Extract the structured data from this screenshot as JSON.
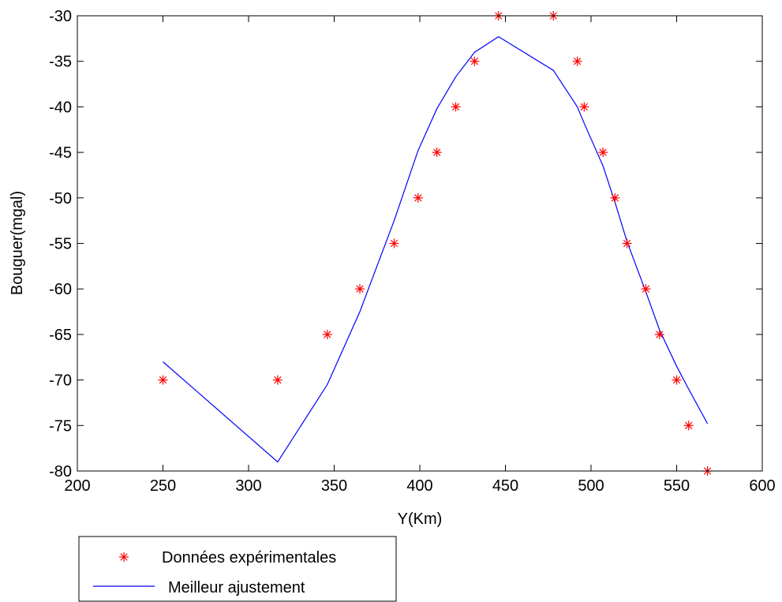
{
  "chart_data": {
    "type": "scatter",
    "title": "",
    "xlabel": "Y(Km)",
    "ylabel": "Bouguer(mgal)",
    "xlim": [
      200,
      600
    ],
    "ylim": [
      -80,
      -30
    ],
    "xticks": [
      200,
      250,
      300,
      350,
      400,
      450,
      500,
      550,
      600
    ],
    "yticks": [
      -30,
      -35,
      -40,
      -45,
      -50,
      -55,
      -60,
      -65,
      -70,
      -75,
      -80
    ],
    "grid": false,
    "legend_position": "bottom-left, outside plot",
    "series": [
      {
        "name": "Données expérimentales",
        "type": "scatter",
        "marker": "asterisk",
        "color": "#ff0000",
        "x": [
          250,
          317,
          346,
          365,
          385,
          399,
          410,
          421,
          432,
          446,
          478,
          492,
          496,
          507,
          514,
          521,
          532,
          540,
          550,
          557,
          568
        ],
        "y": [
          -70,
          -70,
          -65,
          -60,
          -55,
          -50,
          -45,
          -40,
          -35,
          -30,
          -30,
          -35,
          -40,
          -45,
          -50,
          -55,
          -60,
          -65,
          -70,
          -75,
          -80
        ]
      },
      {
        "name": "Meilleur ajustement",
        "type": "line",
        "color": "#0000ff",
        "x": [
          250,
          317,
          346,
          365,
          385,
          399,
          410,
          421,
          432,
          446,
          478,
          492,
          496,
          507,
          514,
          521,
          532,
          540,
          550,
          557,
          568
        ],
        "y": [
          -68.0,
          -79.0,
          -70.5,
          -62.5,
          -52.5,
          -44.8,
          -40.2,
          -36.7,
          -34.0,
          -32.3,
          -36.0,
          -40.0,
          -41.8,
          -46.5,
          -50.5,
          -54.8,
          -60.3,
          -64.5,
          -68.5,
          -71.0,
          -74.8
        ]
      }
    ]
  }
}
